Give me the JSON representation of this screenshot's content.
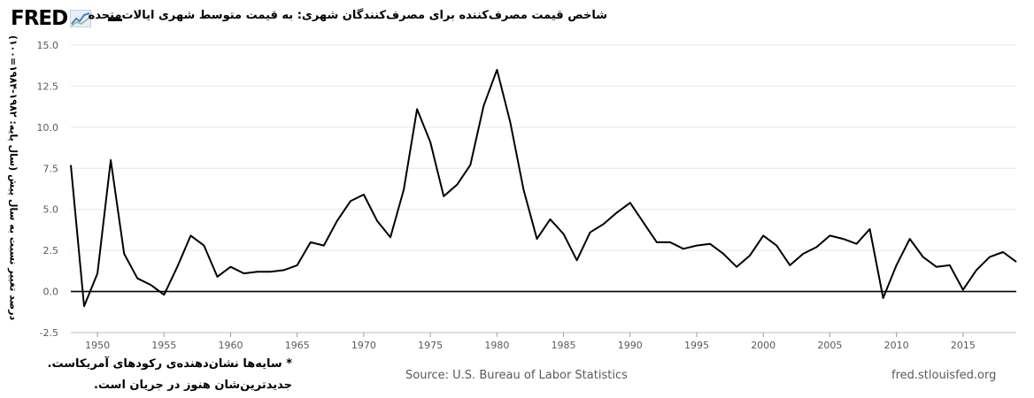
{
  "header": {
    "logo_text": "FRED",
    "title": "شاخص قیمت مصرف‌کننده برای مصرف‌کنندگان شهری: به قیمت متوسط شهری  ایالات‌متحده",
    "series_color": "#000000"
  },
  "footer": {
    "recession_note_line1": "* سایه‌ها نشان‌دهنده‌ی رکودهای آمریکاست.",
    "recession_note_line2": "جدیدترین‌شان هنوز در جریان است.",
    "source": "Source: U.S. Bureau of Labor Statistics",
    "site": "fred.stlouisfed.org"
  },
  "colors": {
    "line": "#000000",
    "grid": "#e6e6e6",
    "zero_line": "#000000",
    "axis_text": "#595959"
  },
  "chart_data": {
    "type": "line",
    "title": "شاخص قیمت مصرف‌کننده برای مصرف‌کنندگان شهری: به قیمت متوسط شهری  ایالات‌متحده",
    "ylabel": "درصد تغییر نسبت به سال پیش (سال پایه: ۱۹۸۲-۱۹۸۴=۱۰۰)",
    "xlabel": "",
    "xlim": [
      1948,
      2019
    ],
    "ylim": [
      -2.5,
      15.0
    ],
    "yticks": [
      "15.0",
      "12.5",
      "10.0",
      "7.5",
      "5.0",
      "2.5",
      "0.0",
      "-2.5"
    ],
    "ytick_values": [
      15.0,
      12.5,
      10.0,
      7.5,
      5.0,
      2.5,
      0.0,
      -2.5
    ],
    "xticks": [
      "1950",
      "1955",
      "1960",
      "1965",
      "1970",
      "1975",
      "1980",
      "1985",
      "1990",
      "1995",
      "2000",
      "2005",
      "2010",
      "2015"
    ],
    "xtick_values": [
      1950,
      1955,
      1960,
      1965,
      1970,
      1975,
      1980,
      1985,
      1990,
      1995,
      2000,
      2005,
      2010,
      2015
    ],
    "grid": "horizontal",
    "series": [
      {
        "x": [
          1948,
          1949,
          1950,
          1951,
          1952,
          1953,
          1954,
          1955,
          1956,
          1957,
          1958,
          1959,
          1960,
          1961,
          1962,
          1963,
          1964,
          1965,
          1966,
          1967,
          1968,
          1969,
          1970,
          1971,
          1972,
          1973,
          1974,
          1975,
          1976,
          1977,
          1978,
          1979,
          1980,
          1981,
          1982,
          1983,
          1984,
          1985,
          1986,
          1987,
          1988,
          1989,
          1990,
          1991,
          1992,
          1993,
          1994,
          1995,
          1996,
          1997,
          1998,
          1999,
          2000,
          2001,
          2002,
          2003,
          2004,
          2005,
          2006,
          2007,
          2008,
          2009,
          2010,
          2011,
          2012,
          2013,
          2014,
          2015,
          2016,
          2017,
          2018,
          2019
        ],
        "values": [
          7.7,
          -0.9,
          1.1,
          8.0,
          2.3,
          0.8,
          0.4,
          -0.2,
          1.5,
          3.4,
          2.8,
          0.9,
          1.5,
          1.1,
          1.2,
          1.2,
          1.3,
          1.6,
          3.0,
          2.8,
          4.3,
          5.5,
          5.9,
          4.3,
          3.3,
          6.2,
          11.1,
          9.1,
          5.8,
          6.5,
          7.7,
          11.3,
          13.5,
          10.3,
          6.2,
          3.2,
          4.4,
          3.5,
          1.9,
          3.6,
          4.1,
          4.8,
          5.4,
          4.2,
          3.0,
          3.0,
          2.6,
          2.8,
          2.9,
          2.3,
          1.5,
          2.2,
          3.4,
          2.8,
          1.6,
          2.3,
          2.7,
          3.4,
          3.2,
          2.9,
          3.8,
          -0.4,
          1.6,
          3.2,
          2.1,
          1.5,
          1.6,
          0.1,
          1.3,
          2.1,
          2.4,
          1.8
        ]
      }
    ]
  }
}
